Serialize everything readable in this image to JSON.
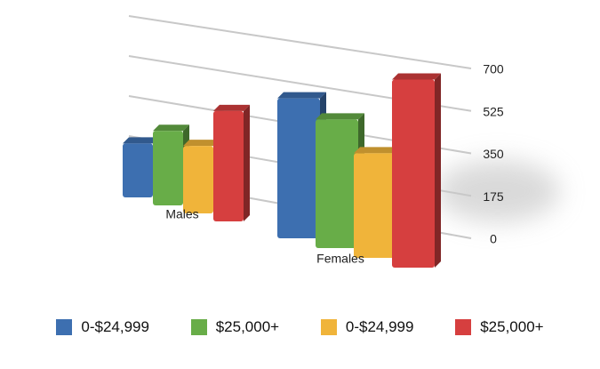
{
  "chart_data": {
    "type": "bar",
    "categories": [
      "Males",
      "Females"
    ],
    "series": [
      {
        "name": "0-$24,999",
        "color": "#3d6fb0",
        "values": [
          222,
          506
        ]
      },
      {
        "name": "$25,000+",
        "color": "#68ad48",
        "values": [
          307,
          465
        ]
      },
      {
        "name": "0-$24,999",
        "color": "#f0b43a",
        "values": [
          278,
          378
        ]
      },
      {
        "name": "$25,000+",
        "color": "#d63f3f",
        "values": [
          455,
          680
        ]
      }
    ],
    "ylim": [
      0,
      700
    ],
    "yticks": [
      0,
      175,
      350,
      525,
      700
    ],
    "grid": true
  }
}
